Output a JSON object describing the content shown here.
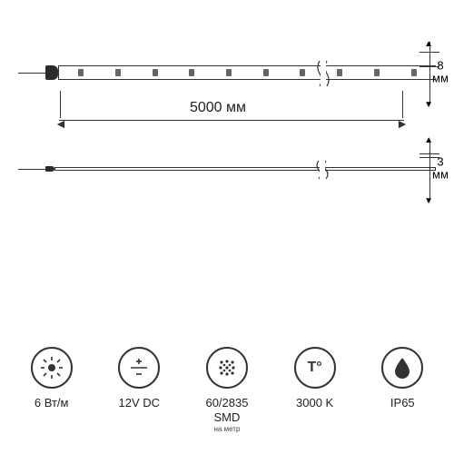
{
  "diagram": {
    "length_label": "5000 мм",
    "width_top": {
      "value": "8",
      "unit": "мм"
    },
    "width_bottom": {
      "value": "3",
      "unit": "мм"
    },
    "led_count_visible": 10,
    "colors": {
      "background": "#ffffff",
      "line": "#333333",
      "endcap": "#2b2b2b",
      "led": "#666666",
      "text": "#222222"
    }
  },
  "specs": [
    {
      "icon": "brightness",
      "label": "6 Вт/м"
    },
    {
      "icon": "voltage",
      "label": "12V DC"
    },
    {
      "icon": "density",
      "label": "60/2835<br>SMD",
      "sublabel": "на метр"
    },
    {
      "icon": "temp",
      "label": "3000 K"
    },
    {
      "icon": "ip",
      "label": "IP65"
    }
  ],
  "icon_glyphs": {
    "brightness": "svg-brightness",
    "voltage": "svg-voltage",
    "density": "svg-density",
    "temp": "T°",
    "ip": "svg-drop"
  }
}
